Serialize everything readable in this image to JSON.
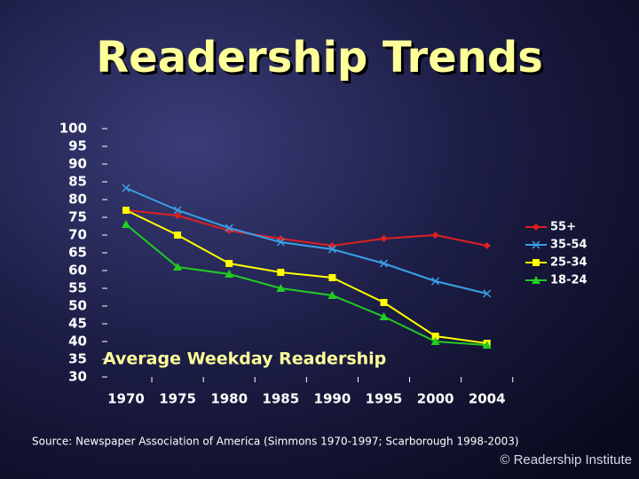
{
  "chart_data": {
    "type": "line",
    "title": "Readership Trends",
    "x_label": "Average Weekday Readership",
    "categories": [
      "1970",
      "1975",
      "1980",
      "1985",
      "1990",
      "1995",
      "2000",
      "2004"
    ],
    "series": [
      {
        "name": "55+",
        "color": "#e02020",
        "marker": "diamond",
        "values": [
          77,
          75.5,
          71.25,
          69,
          67,
          69,
          70,
          67
        ]
      },
      {
        "name": "35-54",
        "color": "#3aa0e6",
        "marker": "x",
        "values": [
          83.25,
          77,
          72,
          68,
          66,
          62,
          57,
          53.5
        ]
      },
      {
        "name": "25-34",
        "color": "#ffff00",
        "marker": "square",
        "values": [
          77,
          70,
          62,
          59.5,
          58,
          51,
          41.5,
          39.5
        ]
      },
      {
        "name": "18-24",
        "color": "#22cc22",
        "marker": "triangle",
        "values": [
          73,
          61,
          59,
          55,
          53,
          47,
          40,
          39
        ]
      }
    ],
    "ylim": [
      30,
      100
    ],
    "yticks": [
      100,
      95,
      90,
      85,
      80,
      75,
      70,
      65,
      60,
      55,
      50,
      45,
      40,
      35,
      30
    ],
    "legend": "right"
  },
  "footer": {
    "source": "Source: Newspaper Association of America (Simmons 1970-1997; Scarborough 1998-2003)",
    "credit": "© Readership Institute"
  }
}
